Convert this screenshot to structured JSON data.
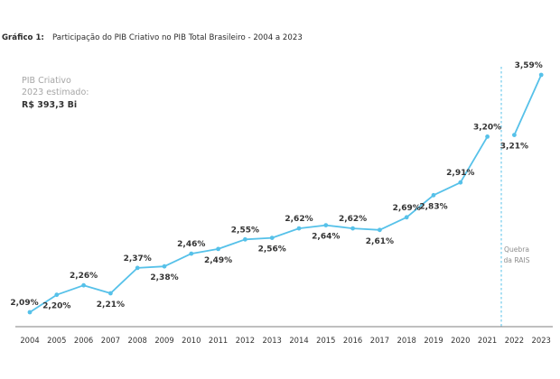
{
  "title": {
    "prefix": "Gráfico 1:",
    "text": "Participação do PIB Criativo no PIB Total Brasileiro - 2004 a 2023"
  },
  "annotation": {
    "line1": "PIB Criativo",
    "line2": "2023 estimado:",
    "value": "R$ 393,3 Bi"
  },
  "break_label": {
    "line1": "Quebra",
    "line2": "da RAIS"
  },
  "colors": {
    "line": "#56c1e9",
    "text": "#333333",
    "axis": "#555555"
  },
  "chart_data": {
    "type": "line",
    "title": "Participação do PIB Criativo no PIB Total Brasileiro - 2004 a 2023",
    "xlabel": "",
    "ylabel": "",
    "grid": false,
    "legend": "none",
    "x": [
      "2004",
      "2005",
      "2006",
      "2007",
      "2008",
      "2009",
      "2010",
      "2011",
      "2012",
      "2013",
      "2014",
      "2015",
      "2016",
      "2017",
      "2018",
      "2019",
      "2020",
      "2021",
      "2022",
      "2023"
    ],
    "series": [
      {
        "values": [
          2.09,
          2.2,
          2.26,
          2.21,
          2.37,
          2.38,
          2.46,
          2.49,
          2.55,
          2.56,
          2.62,
          2.64,
          2.62,
          2.61,
          2.69,
          2.83,
          2.91,
          3.2,
          3.21,
          3.59
        ],
        "labels": [
          "2,09%",
          "2,20%",
          "2,26%",
          "2,21%",
          "2,37%",
          "2,38%",
          "2,46%",
          "2,49%",
          "2,55%",
          "2,56%",
          "2,62%",
          "2,64%",
          "2,62%",
          "2,61%",
          "2,69%",
          "2,83%",
          "2,91%",
          "3,20%",
          "3,21%",
          "3,59%"
        ],
        "segments": [
          [
            0,
            17
          ],
          [
            18,
            19
          ]
        ]
      }
    ],
    "break_between": [
      "2021",
      "2022"
    ]
  }
}
